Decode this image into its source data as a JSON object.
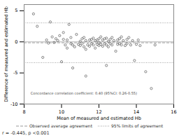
{
  "chart_data": {
    "type": "scatter",
    "xlabel": "Mean of measured and estimated Hb",
    "ylabel": "Difference of measured and estimated Hb",
    "xlim": [
      8,
      16
    ],
    "ylim": [
      -10,
      6
    ],
    "xticks": [
      8,
      10,
      12,
      14,
      16
    ],
    "yticks": [
      -10,
      -5,
      0,
      5
    ],
    "grid": false,
    "legend": "bottom",
    "series": [
      {
        "type": "scatter",
        "marker": "open_circle",
        "color": "#555555",
        "x": [
          8.5,
          8.7,
          9.0,
          9.2,
          9.3,
          9.5,
          9.6,
          9.7,
          9.8,
          9.9,
          10.0,
          10.1,
          10.1,
          10.2,
          10.3,
          10.3,
          10.4,
          10.5,
          10.5,
          10.6,
          10.7,
          10.8,
          10.9,
          11.0,
          11.0,
          11.1,
          11.1,
          11.2,
          11.2,
          11.3,
          11.3,
          11.4,
          11.5,
          11.5,
          11.6,
          11.6,
          11.7,
          11.7,
          11.8,
          11.8,
          11.9,
          11.9,
          12.0,
          12.0,
          12.0,
          12.1,
          12.1,
          12.2,
          12.2,
          12.3,
          12.3,
          12.4,
          12.4,
          12.5,
          12.5,
          12.6,
          12.6,
          12.7,
          12.7,
          12.8,
          12.9,
          13.0,
          13.0,
          13.1,
          13.1,
          13.2,
          13.2,
          13.3,
          13.4,
          13.5,
          13.5,
          13.6,
          13.7,
          13.8,
          13.9,
          14.0,
          14.1,
          14.2,
          14.5,
          14.8,
          15.0,
          9.4,
          10.6,
          11.3,
          12.4
        ],
        "values": [
          4.5,
          2.5,
          -2.5,
          0.3,
          -0.2,
          0.8,
          -0.1,
          0.5,
          0.2,
          1.0,
          -3.2,
          0.4,
          1.5,
          -0.5,
          -1.0,
          0.3,
          2.8,
          -0.3,
          0.7,
          -0.5,
          -0.8,
          1.2,
          -0.4,
          0.1,
          -0.6,
          0.5,
          -0.3,
          0.7,
          -0.8,
          0.2,
          -1.2,
          -0.5,
          0.3,
          -0.7,
          0.4,
          -0.3,
          0.6,
          -0.5,
          0.2,
          -1.0,
          0.3,
          -0.4,
          0.5,
          -0.6,
          -0.1,
          0.8,
          -0.4,
          0.3,
          -0.7,
          0.5,
          -0.3,
          0.6,
          -0.5,
          0.1,
          -0.8,
          0.4,
          -0.3,
          0.7,
          -0.5,
          0.2,
          -1.5,
          0.3,
          -0.4,
          0.5,
          -0.3,
          0.8,
          -0.5,
          0.2,
          -0.6,
          0.4,
          -0.3,
          0.7,
          -0.5,
          0.2,
          -3.0,
          -0.4,
          0.3,
          -0.6,
          -4.8,
          -7.5,
          -0.5,
          3.2,
          -4.2,
          -5.5,
          -3.8
        ]
      },
      {
        "type": "hline",
        "line_style": "solid",
        "color": "#aaaaaa",
        "values": [
          0
        ]
      },
      {
        "type": "hline",
        "name": "Observed average agreement",
        "line_style": "dashed",
        "color": "#999999",
        "values": [
          -0.15
        ]
      },
      {
        "type": "hline",
        "name": "95% limits of agreement",
        "line_style": "dotted",
        "color": "#999999",
        "values": [
          3.05,
          -3.35
        ]
      }
    ],
    "annotations": [
      {
        "text": "Concordance correlation coefficient: 0.40 (95%CI: 0.26-0.55)",
        "x": 8.35,
        "y": -8.5
      }
    ],
    "footer": "r = -0.445, p <0.001"
  }
}
